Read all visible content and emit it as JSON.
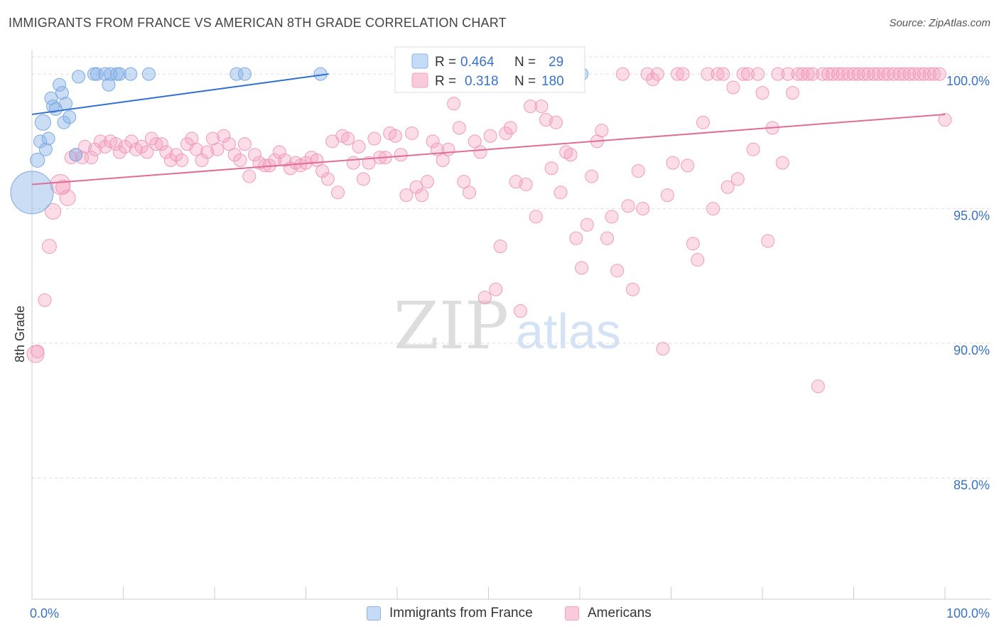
{
  "title": "IMMIGRANTS FROM FRANCE VS AMERICAN 8TH GRADE CORRELATION CHART",
  "source": "Source: ZipAtlas.com",
  "watermark": {
    "zip": "ZIP",
    "atlas": "atlas"
  },
  "colors": {
    "blue": "#8ab4e8",
    "blue_line": "#2f6fd0",
    "pink": "#f4a3bf",
    "pink_line": "#e06d98",
    "axis_text": "#3a72c4"
  },
  "legend": {
    "rows": [
      {
        "r_label": "R =",
        "r_value": "0.464",
        "n_label": "N =",
        "n_value": "29"
      },
      {
        "r_label": "R =",
        "r_value": "0.318",
        "n_label": "N =",
        "n_value": "180"
      }
    ]
  },
  "bottom_legend": [
    {
      "label": "Immigrants from France"
    },
    {
      "label": "Americans"
    }
  ],
  "chart_data": {
    "type": "scatter",
    "title": "IMMIGRANTS FROM FRANCE VS AMERICAN 8TH GRADE CORRELATION CHART",
    "xlabel": "",
    "ylabel": "8th Grade",
    "xlim": [
      0,
      100
    ],
    "ylim": [
      80.5,
      100.9
    ],
    "x_tick_labels": [
      "0.0%",
      "100.0%"
    ],
    "y_ticks": [
      85,
      90,
      95,
      100
    ],
    "y_tick_labels": [
      "85.0%",
      "90.0%",
      "95.0%",
      "100.0%"
    ],
    "grid": "horizontal dashed",
    "series": [
      {
        "name": "Immigrants from France",
        "R": 0.464,
        "N": 29,
        "trend": [
          [
            0,
            98.5
          ],
          [
            32.5,
            100.0
          ]
        ],
        "points": [
          [
            0.0,
            95.6,
            30
          ],
          [
            0.6,
            96.8,
            10
          ],
          [
            0.9,
            97.5,
            9
          ],
          [
            1.2,
            98.2,
            11
          ],
          [
            1.5,
            97.2,
            9
          ],
          [
            1.8,
            97.6,
            9
          ],
          [
            2.1,
            99.1,
            9
          ],
          [
            2.3,
            98.8,
            9
          ],
          [
            2.6,
            98.7,
            9
          ],
          [
            3.0,
            99.6,
            9
          ],
          [
            3.3,
            99.3,
            9
          ],
          [
            3.5,
            98.2,
            9
          ],
          [
            3.7,
            98.9,
            9
          ],
          [
            4.1,
            98.4,
            9
          ],
          [
            4.8,
            97.0,
            9
          ],
          [
            5.1,
            99.9,
            9
          ],
          [
            6.8,
            100.0,
            9
          ],
          [
            7.1,
            100.0,
            9
          ],
          [
            8.0,
            100.0,
            9
          ],
          [
            8.4,
            99.6,
            9
          ],
          [
            8.6,
            100.0,
            9
          ],
          [
            9.3,
            100.0,
            9
          ],
          [
            9.6,
            100.0,
            9
          ],
          [
            10.8,
            100.0,
            9
          ],
          [
            12.8,
            100.0,
            9
          ],
          [
            22.4,
            100.0,
            9
          ],
          [
            23.3,
            100.0,
            9
          ],
          [
            31.6,
            100.0,
            9
          ],
          [
            60.2,
            100.0,
            9
          ]
        ]
      },
      {
        "name": "Americans",
        "R": 0.318,
        "N": 180,
        "trend": [
          [
            0,
            95.9
          ],
          [
            100,
            98.5
          ]
        ],
        "points": [
          [
            0.4,
            89.6,
            12
          ],
          [
            0.6,
            89.7,
            9
          ],
          [
            1.4,
            91.6,
            9
          ],
          [
            1.9,
            93.6,
            10
          ],
          [
            2.3,
            94.9,
            11
          ],
          [
            3.1,
            95.9,
            14
          ],
          [
            3.4,
            95.8,
            10
          ],
          [
            3.9,
            95.4,
            11
          ],
          [
            4.3,
            96.9,
            9
          ],
          [
            4.8,
            97.0,
            9
          ],
          [
            5.5,
            96.9,
            9
          ],
          [
            5.8,
            97.3,
            9
          ],
          [
            6.5,
            96.9,
            9
          ],
          [
            6.9,
            97.2,
            9
          ],
          [
            7.5,
            97.5,
            9
          ],
          [
            8.0,
            97.3,
            9
          ],
          [
            8.6,
            97.5,
            9
          ],
          [
            9.2,
            97.4,
            9
          ],
          [
            9.6,
            97.1,
            9
          ],
          [
            10.2,
            97.3,
            9
          ],
          [
            10.9,
            97.5,
            9
          ],
          [
            11.4,
            97.2,
            9
          ],
          [
            12.0,
            97.3,
            9
          ],
          [
            12.6,
            97.1,
            9
          ],
          [
            13.1,
            97.6,
            9
          ],
          [
            13.6,
            97.4,
            9
          ],
          [
            14.2,
            97.4,
            9
          ],
          [
            14.7,
            97.1,
            9
          ],
          [
            15.2,
            96.8,
            9
          ],
          [
            15.8,
            97.0,
            9
          ],
          [
            16.4,
            96.8,
            9
          ],
          [
            17.0,
            97.4,
            9
          ],
          [
            17.5,
            97.6,
            9
          ],
          [
            18.0,
            97.2,
            9
          ],
          [
            18.6,
            96.8,
            9
          ],
          [
            19.2,
            97.1,
            9
          ],
          [
            19.8,
            97.6,
            9
          ],
          [
            20.3,
            97.2,
            9
          ],
          [
            21.0,
            97.7,
            9
          ],
          [
            21.6,
            97.4,
            9
          ],
          [
            22.2,
            97.0,
            9
          ],
          [
            22.8,
            96.8,
            9
          ],
          [
            23.3,
            97.4,
            9
          ],
          [
            23.8,
            96.2,
            9
          ],
          [
            24.4,
            97.0,
            9
          ],
          [
            24.9,
            96.7,
            9
          ],
          [
            25.5,
            96.6,
            9
          ],
          [
            26.0,
            96.6,
            9
          ],
          [
            26.6,
            96.8,
            9
          ],
          [
            27.1,
            97.1,
            9
          ],
          [
            27.7,
            96.8,
            9
          ],
          [
            28.3,
            96.5,
            9
          ],
          [
            28.9,
            96.7,
            9
          ],
          [
            29.4,
            96.6,
            9
          ],
          [
            30.0,
            96.7,
            9
          ],
          [
            30.6,
            96.9,
            9
          ],
          [
            31.2,
            96.8,
            9
          ],
          [
            31.8,
            96.4,
            9
          ],
          [
            32.4,
            96.1,
            9
          ],
          [
            32.9,
            97.5,
            9
          ],
          [
            33.5,
            95.6,
            9
          ],
          [
            34.0,
            97.7,
            9
          ],
          [
            34.6,
            97.6,
            9
          ],
          [
            35.2,
            96.7,
            9
          ],
          [
            35.8,
            97.3,
            9
          ],
          [
            36.3,
            96.1,
            9
          ],
          [
            36.9,
            96.7,
            9
          ],
          [
            37.5,
            97.6,
            9
          ],
          [
            38.1,
            96.9,
            9
          ],
          [
            38.7,
            96.9,
            9
          ],
          [
            39.2,
            97.8,
            9
          ],
          [
            39.8,
            97.7,
            9
          ],
          [
            40.4,
            97.0,
            9
          ],
          [
            41.0,
            95.5,
            9
          ],
          [
            41.6,
            97.8,
            9
          ],
          [
            42.1,
            95.8,
            9
          ],
          [
            42.7,
            95.5,
            9
          ],
          [
            43.3,
            96.0,
            9
          ],
          [
            43.9,
            97.5,
            9
          ],
          [
            44.4,
            97.2,
            9
          ],
          [
            45.0,
            96.8,
            9
          ],
          [
            45.6,
            97.2,
            9
          ],
          [
            46.2,
            98.9,
            9
          ],
          [
            46.8,
            98.0,
            9
          ],
          [
            47.3,
            96.0,
            9
          ],
          [
            47.9,
            95.6,
            9
          ],
          [
            48.5,
            97.5,
            9
          ],
          [
            49.1,
            97.1,
            9
          ],
          [
            49.6,
            91.7,
            9
          ],
          [
            50.2,
            97.7,
            9
          ],
          [
            50.8,
            92.0,
            9
          ],
          [
            51.3,
            93.6,
            9
          ],
          [
            51.9,
            97.8,
            9
          ],
          [
            52.4,
            98.0,
            9
          ],
          [
            53.0,
            96.0,
            9
          ],
          [
            53.5,
            91.2,
            9
          ],
          [
            54.1,
            95.9,
            9
          ],
          [
            54.6,
            98.8,
            9
          ],
          [
            55.2,
            94.7,
            9
          ],
          [
            55.8,
            98.8,
            9
          ],
          [
            56.3,
            98.3,
            9
          ],
          [
            56.9,
            96.5,
            9
          ],
          [
            57.4,
            98.2,
            9
          ],
          [
            57.9,
            95.6,
            9
          ],
          [
            58.5,
            97.1,
            9
          ],
          [
            59.0,
            97.0,
            9
          ],
          [
            59.6,
            93.9,
            9
          ],
          [
            60.2,
            92.8,
            9
          ],
          [
            60.8,
            94.4,
            9
          ],
          [
            61.3,
            96.2,
            9
          ],
          [
            61.9,
            97.5,
            9
          ],
          [
            62.4,
            97.9,
            9
          ],
          [
            63.0,
            93.9,
            9
          ],
          [
            63.5,
            94.7,
            9
          ],
          [
            64.1,
            92.7,
            9
          ],
          [
            64.7,
            100.0,
            9
          ],
          [
            65.3,
            95.1,
            9
          ],
          [
            65.8,
            92.0,
            9
          ],
          [
            66.4,
            96.4,
            9
          ],
          [
            66.9,
            95.0,
            9
          ],
          [
            67.4,
            100.0,
            9
          ],
          [
            68.0,
            99.8,
            9
          ],
          [
            68.5,
            100.0,
            9
          ],
          [
            69.1,
            89.8,
            9
          ],
          [
            69.6,
            95.5,
            9
          ],
          [
            70.2,
            96.7,
            9
          ],
          [
            70.7,
            100.0,
            9
          ],
          [
            71.3,
            100.0,
            9
          ],
          [
            71.8,
            96.6,
            9
          ],
          [
            72.4,
            93.7,
            9
          ],
          [
            72.9,
            93.1,
            9
          ],
          [
            73.5,
            98.2,
            9
          ],
          [
            74.0,
            100.0,
            9
          ],
          [
            74.6,
            95.0,
            9
          ],
          [
            75.1,
            100.0,
            9
          ],
          [
            75.7,
            100.0,
            9
          ],
          [
            76.2,
            95.8,
            9
          ],
          [
            76.8,
            99.5,
            9
          ],
          [
            77.3,
            96.1,
            9
          ],
          [
            77.9,
            100.0,
            9
          ],
          [
            78.4,
            100.0,
            9
          ],
          [
            79.0,
            97.2,
            9
          ],
          [
            79.5,
            100.0,
            9
          ],
          [
            80.0,
            99.3,
            9
          ],
          [
            80.6,
            93.8,
            9
          ],
          [
            81.1,
            98.0,
            9
          ],
          [
            81.7,
            100.0,
            9
          ],
          [
            82.2,
            96.7,
            9
          ],
          [
            82.8,
            100.0,
            9
          ],
          [
            83.3,
            99.3,
            9
          ],
          [
            83.9,
            100.0,
            9
          ],
          [
            84.4,
            100.0,
            9
          ],
          [
            85.0,
            100.0,
            9
          ],
          [
            85.5,
            100.0,
            9
          ],
          [
            86.1,
            88.4,
            9
          ],
          [
            86.6,
            100.0,
            9
          ],
          [
            87.2,
            100.0,
            9
          ],
          [
            87.7,
            100.0,
            9
          ],
          [
            88.3,
            100.0,
            9
          ],
          [
            88.8,
            100.0,
            9
          ],
          [
            89.4,
            100.0,
            9
          ],
          [
            90.0,
            100.0,
            9
          ],
          [
            90.5,
            100.0,
            9
          ],
          [
            91.1,
            100.0,
            9
          ],
          [
            91.6,
            100.0,
            9
          ],
          [
            92.2,
            100.0,
            9
          ],
          [
            92.7,
            100.0,
            9
          ],
          [
            93.3,
            100.0,
            9
          ],
          [
            93.8,
            100.0,
            9
          ],
          [
            94.4,
            100.0,
            9
          ],
          [
            95.0,
            100.0,
            9
          ],
          [
            95.5,
            100.0,
            9
          ],
          [
            96.1,
            100.0,
            9
          ],
          [
            96.6,
            100.0,
            9
          ],
          [
            97.2,
            100.0,
            9
          ],
          [
            97.7,
            100.0,
            9
          ],
          [
            98.3,
            100.0,
            9
          ],
          [
            98.8,
            100.0,
            9
          ],
          [
            99.4,
            100.0,
            9
          ],
          [
            100.0,
            98.3,
            9
          ]
        ]
      }
    ]
  }
}
